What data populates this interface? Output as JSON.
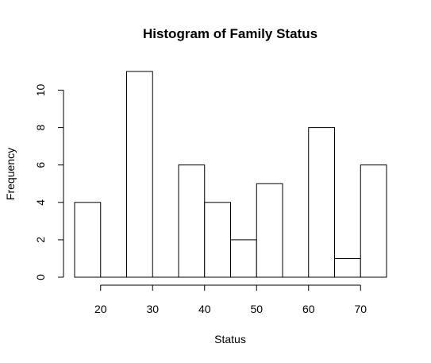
{
  "chart_data": {
    "type": "bar",
    "title": "Histogram of Family Status",
    "xlabel": "Status",
    "ylabel": "Frequency",
    "bins": [
      {
        "start": 15,
        "end": 20,
        "count": 4
      },
      {
        "start": 20,
        "end": 25,
        "count": 0
      },
      {
        "start": 25,
        "end": 30,
        "count": 11
      },
      {
        "start": 30,
        "end": 35,
        "count": 0
      },
      {
        "start": 35,
        "end": 40,
        "count": 6
      },
      {
        "start": 40,
        "end": 45,
        "count": 4
      },
      {
        "start": 45,
        "end": 50,
        "count": 2
      },
      {
        "start": 50,
        "end": 55,
        "count": 5
      },
      {
        "start": 55,
        "end": 60,
        "count": 0
      },
      {
        "start": 60,
        "end": 65,
        "count": 8
      },
      {
        "start": 65,
        "end": 70,
        "count": 1
      },
      {
        "start": 70,
        "end": 75,
        "count": 6
      }
    ],
    "xticks": [
      20,
      30,
      40,
      50,
      60,
      70
    ],
    "yticks": [
      0,
      2,
      4,
      6,
      8,
      10
    ],
    "xlim": [
      15,
      75
    ],
    "ylim": [
      0,
      11
    ],
    "grid": false,
    "legend": "none"
  }
}
